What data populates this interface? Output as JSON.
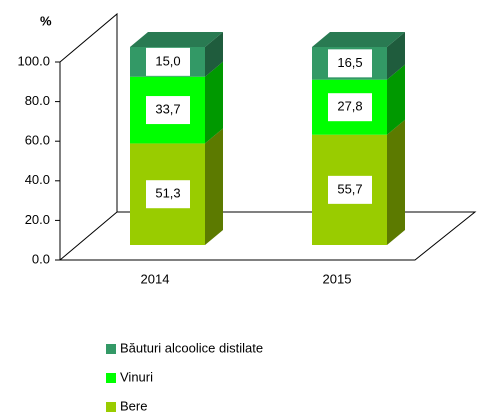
{
  "chart_data": {
    "type": "bar3d_stacked",
    "y_label": "%",
    "categories": [
      "2014",
      "2015"
    ],
    "series": [
      {
        "name": "Bere",
        "color": "#99cc00",
        "values": [
          51.3,
          55.7
        ],
        "value_labels": [
          "51,3",
          "55,7"
        ]
      },
      {
        "name": "Vinuri",
        "color": "#00ff00",
        "values": [
          33.7,
          27.8
        ],
        "value_labels": [
          "33,7",
          "27,8"
        ]
      },
      {
        "name": "Băuturi alcoolice distilate",
        "color": "#339966",
        "values": [
          15.0,
          16.5
        ],
        "value_labels": [
          "15,0",
          "16,5"
        ]
      }
    ],
    "ylim": [
      0,
      100
    ],
    "yticks": [
      {
        "value": 0,
        "label": "0.0"
      },
      {
        "value": 20,
        "label": "20.0"
      },
      {
        "value": 40,
        "label": "40.0"
      },
      {
        "value": 60,
        "label": "60.0"
      },
      {
        "value": 80,
        "label": "80.0"
      },
      {
        "value": 100,
        "label": "100.0"
      }
    ]
  }
}
